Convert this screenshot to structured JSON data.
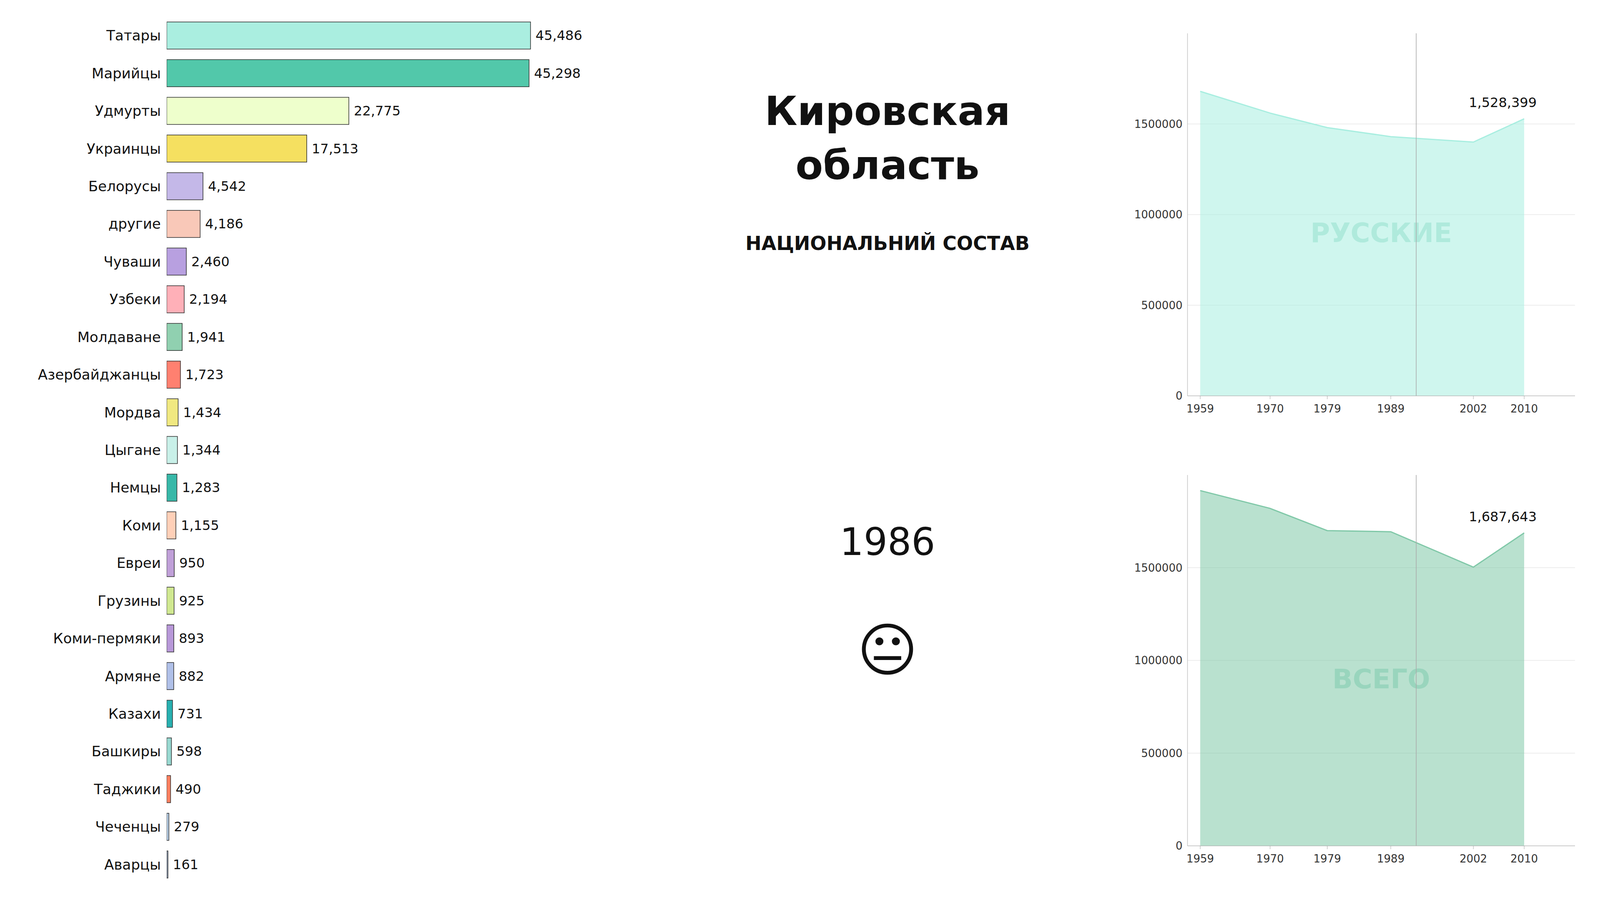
{
  "chart_data": [
    {
      "type": "bar",
      "orientation": "horizontal",
      "title": "Кировская область",
      "subtitle": "НАЦИОНАЛЬНИЙ СОСТАВ",
      "annotations": [
        {
          "text": "1986"
        },
        {
          "text": "😐"
        }
      ],
      "categories": [
        "Татары",
        "Марийцы",
        "Удмурты",
        "Украинцы",
        "Белорусы",
        "другие",
        "Чуваши",
        "Узбеки",
        "Молдаване",
        "Азербайджанцы",
        "Мордва",
        "Цыгане",
        "Немцы",
        "Коми",
        "Евреи",
        "Грузины",
        "Коми-пермяки",
        "Армяне",
        "Казахи",
        "Башкиры",
        "Таджики",
        "Чеченцы",
        "Аварцы"
      ],
      "values": [
        45486,
        45298,
        22775,
        17513,
        4542,
        4186,
        2460,
        2194,
        1941,
        1723,
        1434,
        1344,
        1283,
        1155,
        950,
        925,
        893,
        882,
        731,
        598,
        490,
        279,
        161
      ],
      "value_labels": [
        "45,486",
        "45,298",
        "22,775",
        "17,513",
        "4,542",
        "4,186",
        "2,460",
        "2,194",
        "1,941",
        "1,723",
        "1,434",
        "1,344",
        "1,283",
        "1,155",
        "950",
        "925",
        "893",
        "882",
        "731",
        "598",
        "490",
        "279",
        "161"
      ],
      "colors": [
        "#aaeee0",
        "#52c8aa",
        "#eeffcc",
        "#f5e060",
        "#c4b8e8",
        "#f9c8b8",
        "#b8a0e0",
        "#ffb0b8",
        "#90d0b0",
        "#ff8070",
        "#f0e880",
        "#c8f0e8",
        "#38b8a8",
        "#ffd0b8",
        "#c0a0d8",
        "#d0e890",
        "#b898d8",
        "#b0c0e8",
        "#28b0b0",
        "#98d8d0",
        "#ff8060",
        "#b8d0e8",
        "#98a8c0"
      ],
      "xlim": [
        0,
        50000
      ],
      "data_labels": true,
      "tick_labels": "y",
      "grid": false
    },
    {
      "type": "area",
      "x": [
        1959,
        1970,
        1979,
        1989,
        2002,
        2010
      ],
      "values": [
        1680000,
        1560000,
        1480000,
        1430000,
        1400000,
        1528399
      ],
      "color": "#a8eee0",
      "xlim": [
        1957,
        2018
      ],
      "xticks": [
        1959,
        1970,
        1979,
        1989,
        2002,
        2010
      ],
      "ylim": [
        0,
        2000000
      ],
      "yticks": [
        0,
        500000,
        1000000,
        1500000
      ],
      "grid": true,
      "reference_lines": [
        {
          "x": 1993
        }
      ],
      "annotations": [
        {
          "text": "РУССКИЕ",
          "color": "#b8e4d8"
        },
        {
          "text": "1,528,399",
          "x": 2010,
          "y": 1528399
        }
      ]
    },
    {
      "type": "area",
      "x": [
        1959,
        1970,
        1979,
        1989,
        2002,
        2010
      ],
      "values": [
        1916000,
        1820000,
        1700000,
        1694000,
        1503000,
        1687643
      ],
      "color": "#80c8a8",
      "xlim": [
        1957,
        2018
      ],
      "xticks": [
        1959,
        1970,
        1979,
        1989,
        2002,
        2010
      ],
      "ylim": [
        0,
        2000000
      ],
      "yticks": [
        0,
        500000,
        1000000,
        1500000
      ],
      "grid": true,
      "reference_lines": [
        {
          "x": 1993
        }
      ],
      "annotations": [
        {
          "text": "ВСЕГО",
          "color": "#b8e4d8"
        },
        {
          "text": "1,687,643",
          "x": 2010,
          "y": 1687643
        }
      ]
    }
  ]
}
